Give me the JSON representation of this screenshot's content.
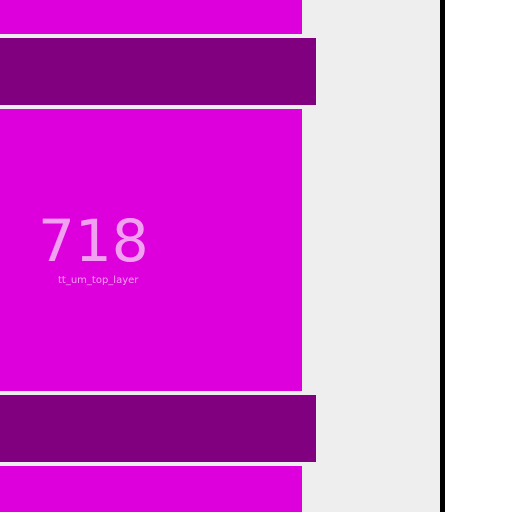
{
  "widget": {
    "value": "718",
    "label": "tt_um_top_layer"
  },
  "colors": {
    "block_bright": "#dd00dd",
    "block_dark": "#800080",
    "panel_background": "#eeeeee",
    "divider": "#000000",
    "text": "#f2a0f2"
  }
}
